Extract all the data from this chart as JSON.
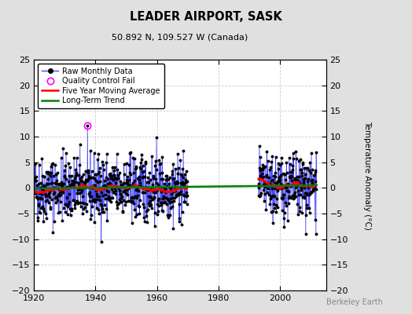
{
  "title": "LEADER AIRPORT, SASK",
  "subtitle": "50.892 N, 109.527 W (Canada)",
  "ylabel_right": "Temperature Anomaly (°C)",
  "credit": "Berkeley Earth",
  "xlim": [
    1920,
    2015
  ],
  "ylim": [
    -20,
    25
  ],
  "yticks": [
    -20,
    -15,
    -10,
    -5,
    0,
    5,
    10,
    15,
    20,
    25
  ],
  "xticks": [
    1920,
    1940,
    1960,
    1980,
    2000
  ],
  "bg_color": "#e0e0e0",
  "plot_bg_color": "#ffffff",
  "raw_line_color": "#4444ff",
  "raw_marker_color": "black",
  "qc_fail_color": "magenta",
  "moving_avg_color": "red",
  "trend_color": "green",
  "gap_start": 1970,
  "gap_end": 1993,
  "noise_std": 3.2,
  "seed": 42,
  "n_years": 92,
  "start_year": 1920
}
